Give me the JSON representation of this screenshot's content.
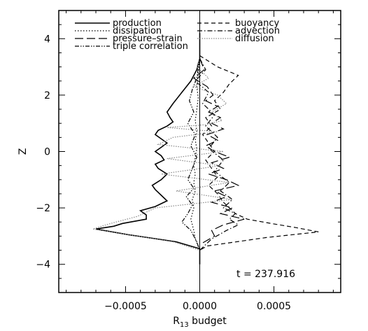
{
  "chart_data": {
    "type": "line",
    "title": "",
    "xlabel": "R",
    "xlabel_sub": "13",
    "xlabel_suffix": " budget",
    "ylabel": "Z",
    "xlim": [
      -0.00095,
      0.00095
    ],
    "ylim": [
      -5,
      5
    ],
    "x_ticks": [
      -0.0005,
      0.0,
      0.0005
    ],
    "x_tick_labels": [
      "−0.0005",
      "0.0000",
      "0.0005"
    ],
    "y_ticks": [
      -4,
      -2,
      0,
      2,
      4
    ],
    "y_tick_labels": [
      "−4",
      "−2",
      "0",
      "2",
      "4"
    ],
    "grid": false,
    "legend_placement": "top",
    "annotation": "t = 237.916",
    "series": [
      {
        "name": "production",
        "dash": "solid",
        "color": "#000000",
        "x": [
          0,
          0,
          -2e-05,
          -6e-05,
          -0.00012,
          -0.00018,
          -0.00022,
          -0.0002,
          -0.00018,
          -0.00022,
          -0.00028,
          -0.0003,
          -0.00026,
          -0.00022,
          -0.00026,
          -0.0003,
          -0.00026,
          -0.00024,
          -0.0003,
          -0.00028,
          -0.00022,
          -0.00026,
          -0.00032,
          -0.0003,
          -0.00026,
          -0.00022,
          -0.0003,
          -0.0004,
          -0.00036,
          -0.00036,
          -0.00052,
          -0.00058,
          -0.0007,
          -0.00048,
          -0.00016,
          0,
          0
        ],
        "y": [
          4.2,
          3.3,
          2.9,
          2.5,
          2.1,
          1.7,
          1.4,
          1.2,
          1.05,
          0.9,
          0.75,
          0.6,
          0.45,
          0.3,
          0.15,
          0.0,
          -0.15,
          -0.3,
          -0.45,
          -0.6,
          -0.8,
          -1.0,
          -1.2,
          -1.35,
          -1.55,
          -1.75,
          -1.95,
          -2.1,
          -2.25,
          -2.4,
          -2.55,
          -2.65,
          -2.75,
          -2.95,
          -3.2,
          -3.45,
          -4.0
        ]
      },
      {
        "name": "dissipation",
        "dash": "dotted",
        "color": "#000000",
        "x": [
          0,
          -1e-05,
          -2e-05,
          -1e-05,
          -2e-05,
          -3e-05,
          -2e-05,
          -3e-05,
          -2e-05,
          -3e-05,
          -4e-05,
          -3e-05,
          -4e-05,
          -3e-05,
          -5e-05,
          -4e-05,
          -6e-05,
          -4e-05,
          -3e-05,
          0
        ],
        "y": [
          3.3,
          2.8,
          2.3,
          1.9,
          1.5,
          1.1,
          0.7,
          0.4,
          0.1,
          -0.2,
          -0.5,
          -0.8,
          -1.1,
          -1.4,
          -1.7,
          -2.0,
          -2.4,
          -2.8,
          -3.1,
          -3.5
        ]
      },
      {
        "name": "pressure–strain",
        "dash": "long-dash",
        "color": "#000000",
        "x": [
          0,
          3e-05,
          -4e-05,
          5e-05,
          9e-05,
          4e-05,
          0.00012,
          6e-05,
          0.00014,
          8e-05,
          0.00016,
          5e-05,
          0.00012,
          4e-05,
          0.0001,
          0.0002,
          8e-05,
          0.00016,
          6e-05,
          0.00018,
          0.00026,
          0.0001,
          0.00018,
          8e-05,
          0.00022,
          0.00014,
          0.0003,
          0.00016,
          8e-05,
          0.0001,
          0
        ],
        "y": [
          3.3,
          2.9,
          2.6,
          2.3,
          2.0,
          1.8,
          1.6,
          1.4,
          1.2,
          1.0,
          0.8,
          0.6,
          0.4,
          0.2,
          0.0,
          -0.2,
          -0.4,
          -0.6,
          -0.8,
          -1.0,
          -1.2,
          -1.4,
          -1.6,
          -1.8,
          -2.0,
          -2.2,
          -2.4,
          -2.6,
          -2.8,
          -3.0,
          -3.3
        ]
      },
      {
        "name": "triple correlation",
        "dash": "dash-dot-dot",
        "color": "#000000",
        "x": [
          0,
          -2e-05,
          -5e-05,
          -7e-05,
          -4e-05,
          -8e-05,
          -3e-05,
          -6e-05,
          -2e-05,
          -5e-05,
          -8e-05,
          -4e-05,
          -9e-05,
          -5e-05,
          -8e-05,
          -0.00012,
          -6e-05,
          -4e-05,
          -2e-05,
          0
        ],
        "y": [
          3.3,
          2.6,
          2.2,
          1.8,
          1.4,
          1.0,
          0.6,
          0.2,
          -0.2,
          -0.6,
          -1.0,
          -1.3,
          -1.6,
          -1.9,
          -2.2,
          -2.5,
          -2.8,
          -3.0,
          -3.2,
          -3.5
        ]
      },
      {
        "name": "buoyancy",
        "dash": "dashed",
        "color": "#000000",
        "x": [
          0,
          0.00012,
          0.00026,
          0.0002,
          0.00016,
          0.0001,
          0.00014,
          4e-05,
          8e-05,
          2e-05,
          6e-05,
          0.0001,
          4e-05,
          8e-05,
          0.00012,
          6e-05,
          0.00012,
          0.00016,
          0.0002,
          0.00024,
          0.00032,
          0.00048,
          0.00065,
          0.0008,
          0.00045,
          5e-05,
          0
        ],
        "y": [
          3.4,
          3.0,
          2.7,
          2.4,
          2.1,
          1.8,
          1.5,
          1.2,
          0.9,
          0.6,
          0.3,
          0.0,
          -0.3,
          -0.6,
          -0.9,
          -1.2,
          -1.5,
          -1.8,
          -2.0,
          -2.2,
          -2.4,
          -2.55,
          -2.7,
          -2.85,
          -3.05,
          -3.35,
          -3.5
        ]
      },
      {
        "name": "advection",
        "dash": "dash-dot",
        "color": "#000000",
        "x": [
          0,
          4e-05,
          -3e-05,
          6e-05,
          2e-05,
          0.0001,
          4e-05,
          0.00012,
          6e-05,
          0.00016,
          0.0001,
          0.0002,
          0.00014,
          0.00022,
          0.00016,
          0.00024,
          0.0002,
          0.00026,
          0.00018,
          8e-05,
          0
        ],
        "y": [
          3.3,
          2.9,
          2.5,
          2.1,
          1.7,
          1.3,
          0.9,
          0.5,
          0.1,
          -0.3,
          -0.7,
          -1.1,
          -1.4,
          -1.7,
          -2.0,
          -2.2,
          -2.4,
          -2.6,
          -2.8,
          -3.1,
          -3.5
        ]
      },
      {
        "name": "diffusion",
        "dash": "fine-dotted",
        "color": "#888888",
        "x": [
          0,
          -2e-05,
          6e-05,
          -4e-05,
          0.00012,
          0.00018,
          8e-05,
          0.00015,
          4e-05,
          -0.00022,
          0.00012,
          -0.00018,
          -0.00028,
          0.00016,
          -0.00022,
          0.00014,
          -0.00026,
          0.0002,
          -0.00016,
          0.00022,
          -0.0003,
          -0.00042,
          -0.0006,
          -0.00072,
          -0.00048,
          -0.00018,
          0
        ],
        "y": [
          3.3,
          3.0,
          2.6,
          2.3,
          2.0,
          1.7,
          1.4,
          1.1,
          0.95,
          0.85,
          0.7,
          0.5,
          0.25,
          0.0,
          -0.25,
          -0.5,
          -0.8,
          -1.1,
          -1.4,
          -1.7,
          -2.0,
          -2.3,
          -2.55,
          -2.75,
          -2.95,
          -3.2,
          -3.5
        ]
      }
    ]
  }
}
